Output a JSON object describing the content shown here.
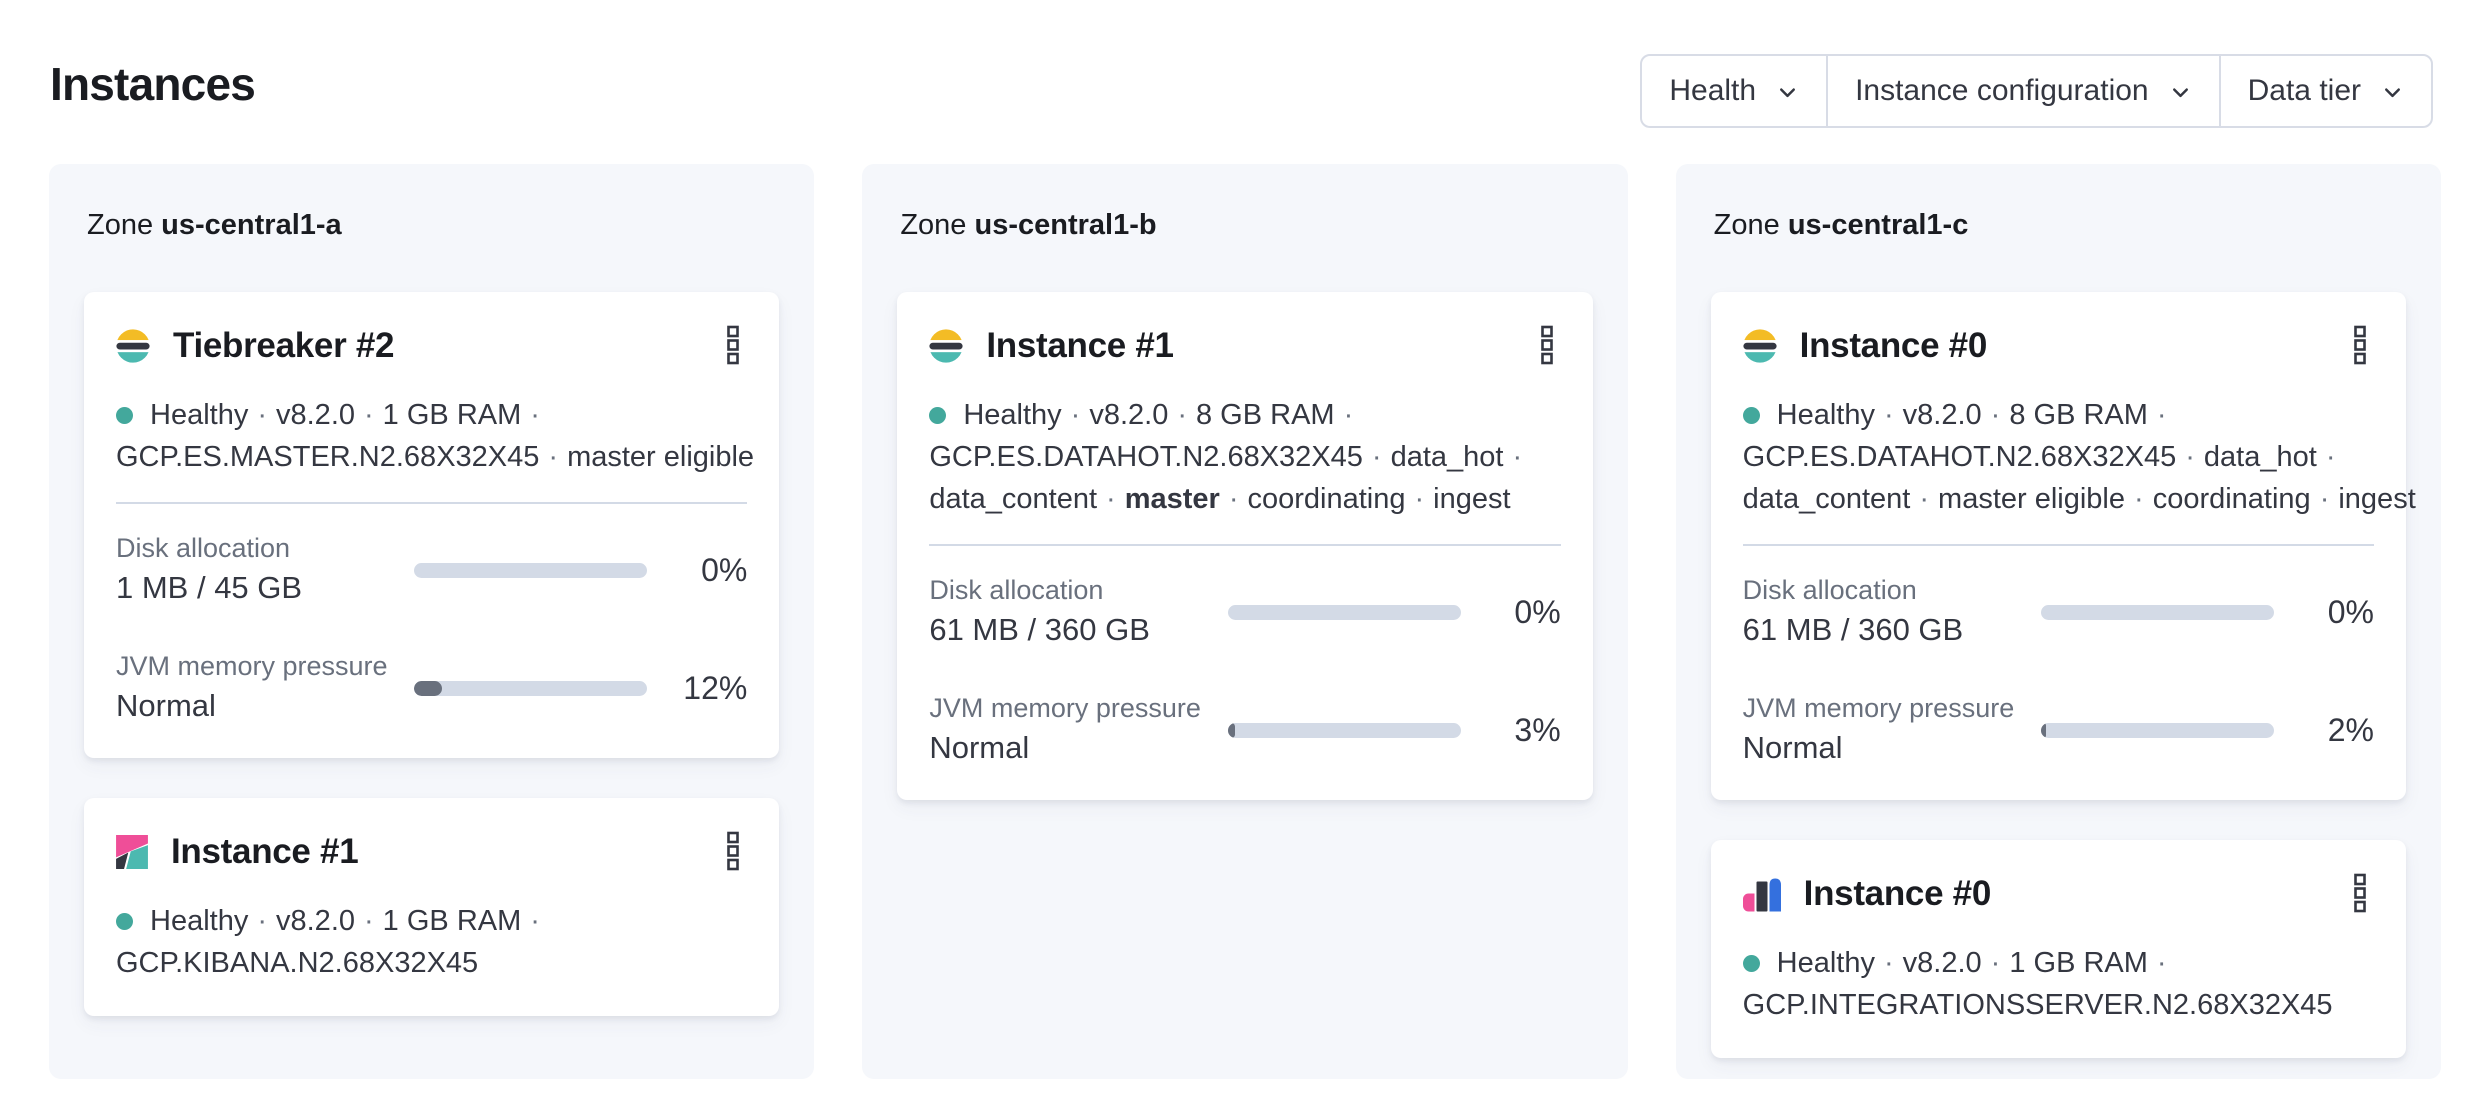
{
  "page": {
    "title": "Instances"
  },
  "filters": [
    {
      "label": "Health"
    },
    {
      "label": "Instance configuration"
    },
    {
      "label": "Data tier"
    }
  ],
  "colors": {
    "health_dot": "#43a89c",
    "bar_track": "#d3dae6",
    "bar_fill": "#69707d",
    "elastic_yellow": "#f3bc25",
    "elastic_dark": "#343741",
    "elastic_teal": "#4cb9b0",
    "kibana_pink": "#ef4e98",
    "integrations_blue": "#3470de",
    "text_dark": "#343741",
    "text_subdued": "#69707d"
  },
  "zones": [
    {
      "label_prefix": "Zone",
      "name": "us-central1-a",
      "cards": [
        {
          "logo": "elasticsearch",
          "title": "Tiebreaker #2",
          "meta_lines": [
            {
              "health_dot": true,
              "segments": [
                {
                  "text": "Healthy"
                },
                {
                  "text": "v8.2.0"
                },
                {
                  "text": "1 GB RAM"
                }
              ],
              "trailing_sep": true
            },
            {
              "segments": [
                {
                  "text": "GCP.ES.MASTER.N2.68X32X45"
                },
                {
                  "text": "master eligible"
                }
              ],
              "trailing_sep": false
            }
          ],
          "metrics": [
            {
              "label": "Disk allocation",
              "value": "1 MB / 45 GB",
              "percent": 0,
              "percent_label": "0%"
            },
            {
              "label": "JVM memory pressure",
              "value": "Normal",
              "percent": 12,
              "percent_label": "12%"
            }
          ]
        },
        {
          "logo": "kibana",
          "title": "Instance #1",
          "meta_lines": [
            {
              "health_dot": true,
              "segments": [
                {
                  "text": "Healthy"
                },
                {
                  "text": "v8.2.0"
                },
                {
                  "text": "1 GB RAM"
                }
              ],
              "trailing_sep": true
            },
            {
              "segments": [
                {
                  "text": "GCP.KIBANA.N2.68X32X45"
                }
              ],
              "trailing_sep": false
            }
          ],
          "metrics": []
        }
      ]
    },
    {
      "label_prefix": "Zone",
      "name": "us-central1-b",
      "cards": [
        {
          "logo": "elasticsearch",
          "title": "Instance #1",
          "meta_lines": [
            {
              "health_dot": true,
              "segments": [
                {
                  "text": "Healthy"
                },
                {
                  "text": "v8.2.0"
                },
                {
                  "text": "8 GB RAM"
                }
              ],
              "trailing_sep": true
            },
            {
              "segments": [
                {
                  "text": "GCP.ES.DATAHOT.N2.68X32X45"
                },
                {
                  "text": "data_hot"
                }
              ],
              "trailing_sep": true
            },
            {
              "segments": [
                {
                  "text": "data_content"
                },
                {
                  "text": "master",
                  "bold": true
                },
                {
                  "text": "coordinating"
                },
                {
                  "text": "ingest"
                }
              ],
              "trailing_sep": false
            }
          ],
          "metrics": [
            {
              "label": "Disk allocation",
              "value": "61 MB / 360 GB",
              "percent": 0,
              "percent_label": "0%"
            },
            {
              "label": "JVM memory pressure",
              "value": "Normal",
              "percent": 3,
              "percent_label": "3%"
            }
          ]
        }
      ]
    },
    {
      "label_prefix": "Zone",
      "name": "us-central1-c",
      "cards": [
        {
          "logo": "elasticsearch",
          "title": "Instance #0",
          "meta_lines": [
            {
              "health_dot": true,
              "segments": [
                {
                  "text": "Healthy"
                },
                {
                  "text": "v8.2.0"
                },
                {
                  "text": "8 GB RAM"
                }
              ],
              "trailing_sep": true
            },
            {
              "segments": [
                {
                  "text": "GCP.ES.DATAHOT.N2.68X32X45"
                },
                {
                  "text": "data_hot"
                }
              ],
              "trailing_sep": true
            },
            {
              "segments": [
                {
                  "text": "data_content"
                },
                {
                  "text": "master eligible"
                },
                {
                  "text": "coordinating"
                },
                {
                  "text": "ingest"
                }
              ],
              "trailing_sep": false
            }
          ],
          "metrics": [
            {
              "label": "Disk allocation",
              "value": "61 MB / 360 GB",
              "percent": 0,
              "percent_label": "0%"
            },
            {
              "label": "JVM memory pressure",
              "value": "Normal",
              "percent": 2,
              "percent_label": "2%"
            }
          ]
        },
        {
          "logo": "integrations_server",
          "title": "Instance #0",
          "meta_lines": [
            {
              "health_dot": true,
              "segments": [
                {
                  "text": "Healthy"
                },
                {
                  "text": "v8.2.0"
                },
                {
                  "text": "1 GB RAM"
                }
              ],
              "trailing_sep": true
            },
            {
              "segments": [
                {
                  "text": "GCP.INTEGRATIONSSERVER.N2.68X32X45"
                }
              ],
              "trailing_sep": false
            }
          ],
          "metrics": []
        }
      ]
    }
  ]
}
